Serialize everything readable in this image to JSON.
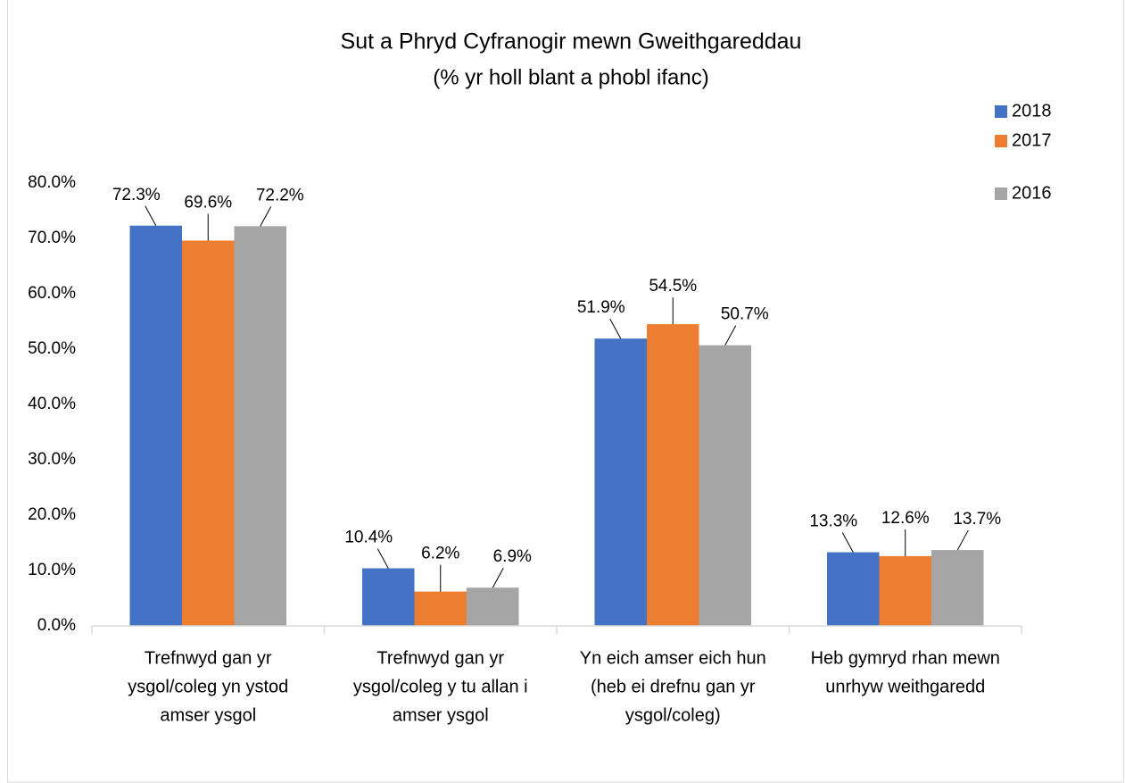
{
  "chart_data": {
    "type": "bar",
    "title": "Sut a Phryd Cyfranogir mewn Gweithgareddau",
    "subtitle": "(% yr holl blant a phobl ifanc)",
    "categories": [
      [
        "Trefnwyd gan yr",
        "ysgol/coleg yn ystod",
        "amser ysgol"
      ],
      [
        "Trefnwyd gan yr",
        "ysgol/coleg y tu allan i",
        "amser ysgol"
      ],
      [
        "Yn eich amser eich hun",
        "(heb ei drefnu gan yr",
        "ysgol/coleg)"
      ],
      [
        "Heb gymryd rhan mewn",
        "unrhyw weithgaredd"
      ]
    ],
    "series": [
      {
        "name": "2018",
        "color": "#4472c4",
        "values": [
          72.3,
          10.4,
          51.9,
          13.3
        ],
        "value_labels": [
          "72.3%",
          "10.4%",
          "51.9%",
          "13.3%"
        ]
      },
      {
        "name": "2017",
        "color": "#ed7d31",
        "values": [
          69.6,
          6.2,
          54.5,
          12.6
        ],
        "value_labels": [
          "69.6%",
          "6.2%",
          "54.5%",
          "12.6%"
        ]
      },
      {
        "name": "2016",
        "color": "#a5a5a5",
        "values": [
          72.2,
          6.9,
          50.7,
          13.7
        ],
        "value_labels": [
          "72.2%",
          "6.9%",
          "50.7%",
          "13.7%"
        ]
      }
    ],
    "ylim": [
      0,
      80
    ],
    "yticks": [
      {
        "value": 0,
        "label": "0.0%"
      },
      {
        "value": 10,
        "label": "10.0%"
      },
      {
        "value": 20,
        "label": "20.0%"
      },
      {
        "value": 30,
        "label": "30.0%"
      },
      {
        "value": 40,
        "label": "40.0%"
      },
      {
        "value": 50,
        "label": "50.0%"
      },
      {
        "value": 60,
        "label": "60.0%"
      },
      {
        "value": 70,
        "label": "70.0%"
      },
      {
        "value": 80,
        "label": "80.0%"
      }
    ],
    "grid": false,
    "legend": "right"
  }
}
